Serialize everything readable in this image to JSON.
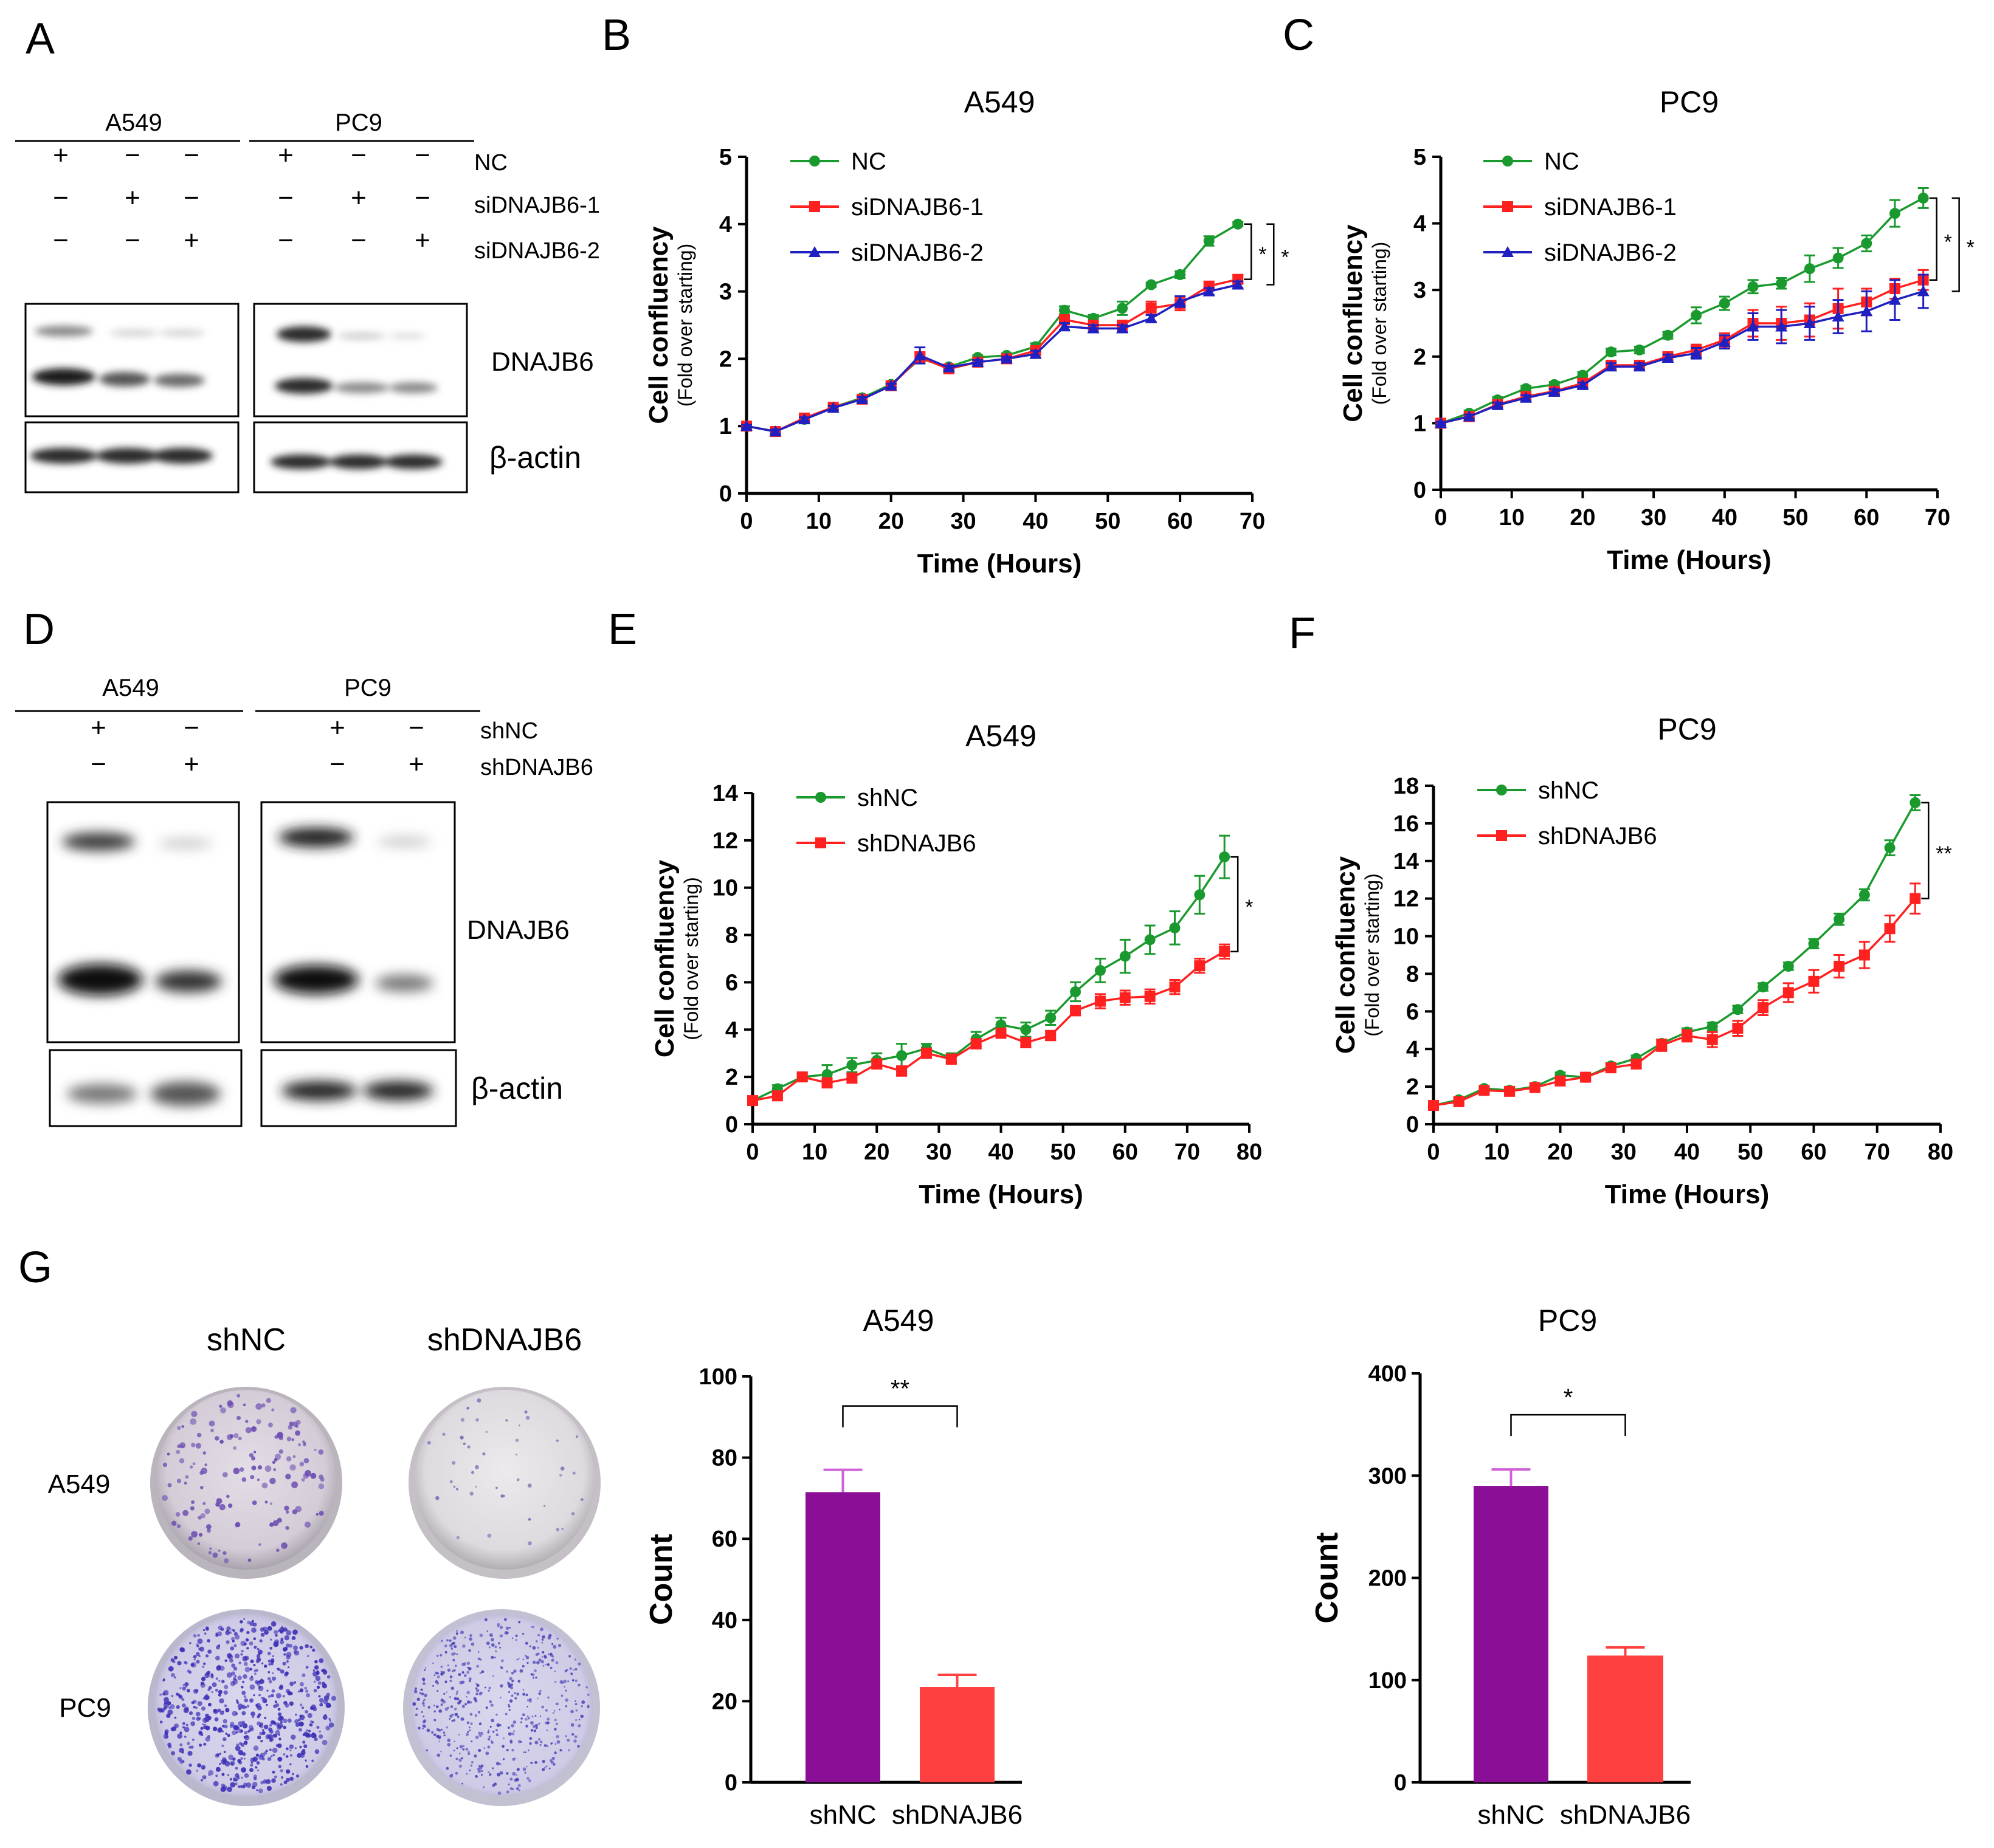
{
  "panel_letters": [
    "A",
    "B",
    "C",
    "D",
    "E",
    "F",
    "G"
  ],
  "colors": {
    "nc": "#1a9a2e",
    "si1": "#ff2020",
    "si2": "#2020c0",
    "bar_nc": "#8b0f96",
    "bar_sh": "#ff4040",
    "bar_err": "#d060d8"
  },
  "blot_A": {
    "cells": [
      "A549",
      "PC9"
    ],
    "rows": [
      {
        "label": "NC",
        "signs": [
          "+",
          "−",
          "−",
          "+",
          "−",
          "−"
        ]
      },
      {
        "label": "siDNAJB6-1",
        "signs": [
          "−",
          "+",
          "−",
          "−",
          "+",
          "−"
        ]
      },
      {
        "label": "siDNAJB6-2",
        "signs": [
          "−",
          "−",
          "+",
          "−",
          "−",
          "+"
        ]
      }
    ],
    "proteins": [
      "DNAJB6",
      "β-actin"
    ]
  },
  "blot_D": {
    "cells": [
      "A549",
      "PC9"
    ],
    "rows": [
      {
        "label": "shNC",
        "signs": [
          "+",
          "−",
          "+",
          "−"
        ]
      },
      {
        "label": "shDNAJB6",
        "signs": [
          "−",
          "+",
          "−",
          "+"
        ]
      }
    ],
    "proteins": [
      "DNAJB6",
      "β-actin"
    ]
  },
  "colony": {
    "cols": [
      "shNC",
      "shDNAJB6"
    ],
    "rows": [
      "A549",
      "PC9"
    ]
  },
  "chart_data": [
    {
      "id": "B",
      "type": "line",
      "title": "A549",
      "xlabel": "Time (Hours)",
      "ylabel": "Cell confluency",
      "ylabel2": "(Fold over starting)",
      "xlim": [
        0,
        70
      ],
      "ylim": [
        0,
        5
      ],
      "xticks": [
        0,
        10,
        20,
        30,
        40,
        50,
        60,
        70
      ],
      "yticks": [
        0,
        1,
        2,
        3,
        4,
        5
      ],
      "x": [
        0,
        4,
        8,
        12,
        16,
        20,
        24,
        28,
        32,
        36,
        40,
        44,
        48,
        52,
        56,
        60,
        64,
        68
      ],
      "series": [
        {
          "name": "NC",
          "marker": "circle",
          "values": [
            1,
            0.92,
            1.1,
            1.28,
            1.42,
            1.62,
            2.0,
            1.88,
            2.02,
            2.05,
            2.18,
            2.72,
            2.6,
            2.75,
            3.1,
            3.25,
            3.75,
            4.0
          ],
          "err": [
            0.02,
            0.03,
            0.03,
            0.03,
            0.03,
            0.03,
            0.05,
            0.03,
            0.03,
            0.03,
            0.05,
            0.06,
            0.05,
            0.1,
            0.03,
            0.05,
            0.07,
            0.03
          ]
        },
        {
          "name": "siDNAJB6-1",
          "marker": "square",
          "values": [
            1,
            0.92,
            1.12,
            1.28,
            1.4,
            1.6,
            2.02,
            1.85,
            1.95,
            2.0,
            2.12,
            2.58,
            2.5,
            2.5,
            2.75,
            2.82,
            3.08,
            3.18
          ],
          "err": [
            0.02,
            0.03,
            0.03,
            0.03,
            0.03,
            0.03,
            0.08,
            0.03,
            0.03,
            0.03,
            0.05,
            0.05,
            0.05,
            0.05,
            0.1,
            0.1,
            0.06,
            0.06
          ]
        },
        {
          "name": "siDNAJB6-2",
          "marker": "triangle",
          "values": [
            1,
            0.92,
            1.1,
            1.27,
            1.4,
            1.6,
            2.05,
            1.87,
            1.95,
            2.0,
            2.07,
            2.48,
            2.45,
            2.45,
            2.6,
            2.85,
            3.0,
            3.1
          ],
          "err": [
            0.02,
            0.03,
            0.03,
            0.03,
            0.03,
            0.03,
            0.12,
            0.03,
            0.03,
            0.03,
            0.05,
            0.05,
            0.05,
            0.05,
            0.05,
            0.08,
            0.05,
            0.05
          ]
        }
      ],
      "significance": [
        "*",
        "*"
      ]
    },
    {
      "id": "C",
      "type": "line",
      "title": "PC9",
      "xlabel": "Time (Hours)",
      "ylabel": "Cell confluency",
      "ylabel2": "(Fold over starting)",
      "xlim": [
        0,
        70
      ],
      "ylim": [
        0,
        5
      ],
      "xticks": [
        0,
        10,
        20,
        30,
        40,
        50,
        60,
        70
      ],
      "yticks": [
        0,
        1,
        2,
        3,
        4,
        5
      ],
      "x": [
        0,
        4,
        8,
        12,
        16,
        20,
        24,
        28,
        32,
        36,
        40,
        44,
        48,
        52,
        56,
        60,
        64,
        68
      ],
      "series": [
        {
          "name": "NC",
          "marker": "circle",
          "values": [
            1,
            1.15,
            1.35,
            1.52,
            1.58,
            1.72,
            2.07,
            2.1,
            2.32,
            2.62,
            2.8,
            3.05,
            3.1,
            3.32,
            3.48,
            3.7,
            4.15,
            4.38
          ],
          "err": [
            0.02,
            0.04,
            0.04,
            0.04,
            0.04,
            0.05,
            0.05,
            0.05,
            0.05,
            0.12,
            0.1,
            0.1,
            0.08,
            0.2,
            0.15,
            0.12,
            0.2,
            0.15
          ]
        },
        {
          "name": "siDNAJB6-1",
          "marker": "square",
          "values": [
            1,
            1.1,
            1.28,
            1.4,
            1.48,
            1.6,
            1.87,
            1.87,
            2.0,
            2.1,
            2.25,
            2.5,
            2.5,
            2.55,
            2.72,
            2.82,
            3.02,
            3.15
          ],
          "err": [
            0.02,
            0.03,
            0.04,
            0.04,
            0.04,
            0.04,
            0.05,
            0.05,
            0.05,
            0.08,
            0.1,
            0.2,
            0.25,
            0.25,
            0.3,
            0.2,
            0.15,
            0.15
          ]
        },
        {
          "name": "siDNAJB6-2",
          "marker": "triangle",
          "values": [
            1,
            1.1,
            1.27,
            1.38,
            1.47,
            1.57,
            1.85,
            1.85,
            1.98,
            2.05,
            2.22,
            2.45,
            2.45,
            2.5,
            2.6,
            2.68,
            2.85,
            2.98
          ],
          "err": [
            0.02,
            0.03,
            0.04,
            0.04,
            0.04,
            0.04,
            0.05,
            0.05,
            0.05,
            0.08,
            0.1,
            0.2,
            0.25,
            0.25,
            0.25,
            0.3,
            0.3,
            0.25
          ]
        }
      ],
      "significance": [
        "*",
        "*"
      ]
    },
    {
      "id": "E",
      "type": "line",
      "title": "A549",
      "xlabel": "Time (Hours)",
      "ylabel": "Cell confluency",
      "ylabel2": "(Fold over starting)",
      "xlim": [
        0,
        80
      ],
      "ylim": [
        0,
        14
      ],
      "xticks": [
        0,
        10,
        20,
        30,
        40,
        50,
        60,
        70,
        80
      ],
      "yticks": [
        0,
        2,
        4,
        6,
        8,
        10,
        12,
        14
      ],
      "x": [
        0,
        4,
        8,
        12,
        16,
        20,
        24,
        28,
        32,
        36,
        40,
        44,
        48,
        52,
        56,
        60,
        64,
        68,
        72,
        76
      ],
      "series": [
        {
          "name": "shNC",
          "marker": "circle",
          "values": [
            1,
            1.5,
            2.0,
            2.1,
            2.5,
            2.7,
            2.9,
            3.2,
            2.8,
            3.6,
            4.2,
            4.0,
            4.5,
            5.6,
            6.5,
            7.1,
            7.8,
            8.3,
            9.7,
            11.3
          ],
          "err": [
            0.1,
            0.15,
            0.15,
            0.4,
            0.3,
            0.3,
            0.5,
            0.2,
            0.2,
            0.3,
            0.3,
            0.3,
            0.3,
            0.4,
            0.5,
            0.7,
            0.6,
            0.7,
            0.8,
            0.9
          ]
        },
        {
          "name": "shDNAJB6",
          "marker": "square",
          "values": [
            1,
            1.2,
            2.0,
            1.75,
            1.95,
            2.55,
            2.25,
            3.0,
            2.75,
            3.4,
            3.85,
            3.45,
            3.75,
            4.8,
            5.2,
            5.35,
            5.4,
            5.8,
            6.7,
            7.3
          ],
          "err": [
            0.1,
            0.1,
            0.15,
            0.2,
            0.2,
            0.2,
            0.2,
            0.2,
            0.2,
            0.2,
            0.2,
            0.2,
            0.2,
            0.2,
            0.3,
            0.3,
            0.3,
            0.3,
            0.3,
            0.3
          ]
        }
      ],
      "significance": [
        "*"
      ]
    },
    {
      "id": "F",
      "type": "line",
      "title": "PC9",
      "xlabel": "Time (Hours)",
      "ylabel": "Cell confluency",
      "ylabel2": "(Fold over starting)",
      "xlim": [
        0,
        80
      ],
      "ylim": [
        0,
        18
      ],
      "xticks": [
        0,
        10,
        20,
        30,
        40,
        50,
        60,
        70,
        80
      ],
      "yticks": [
        0,
        2,
        4,
        6,
        8,
        10,
        12,
        14,
        16,
        18
      ],
      "x": [
        0,
        4,
        8,
        12,
        16,
        20,
        24,
        28,
        32,
        36,
        40,
        44,
        48,
        52,
        56,
        60,
        64,
        68,
        72,
        76
      ],
      "series": [
        {
          "name": "shNC",
          "marker": "circle",
          "values": [
            1,
            1.3,
            1.9,
            1.8,
            2.0,
            2.6,
            2.5,
            3.1,
            3.5,
            4.3,
            4.9,
            5.2,
            6.1,
            7.3,
            8.4,
            9.6,
            10.9,
            12.2,
            14.7,
            17.1
          ],
          "err": [
            0.1,
            0.1,
            0.1,
            0.1,
            0.1,
            0.15,
            0.15,
            0.15,
            0.15,
            0.2,
            0.2,
            0.2,
            0.2,
            0.2,
            0.2,
            0.25,
            0.3,
            0.3,
            0.4,
            0.4
          ]
        },
        {
          "name": "shDNAJB6",
          "marker": "square",
          "values": [
            1,
            1.2,
            1.8,
            1.75,
            1.95,
            2.3,
            2.5,
            3.0,
            3.2,
            4.2,
            4.7,
            4.5,
            5.1,
            6.2,
            7.0,
            7.6,
            8.4,
            9.0,
            10.4,
            12.0
          ],
          "err": [
            0.1,
            0.1,
            0.1,
            0.1,
            0.1,
            0.15,
            0.15,
            0.15,
            0.2,
            0.3,
            0.3,
            0.4,
            0.4,
            0.4,
            0.5,
            0.6,
            0.6,
            0.7,
            0.7,
            0.8
          ]
        }
      ],
      "significance": [
        "**"
      ]
    },
    {
      "id": "G1",
      "type": "bar",
      "title": "A549",
      "ylabel": "Count",
      "categories": [
        "shNC",
        "shDNAJB6"
      ],
      "values": [
        71.5,
        23.5
      ],
      "err": [
        5.5,
        3.0
      ],
      "ylim": [
        0,
        100
      ],
      "yticks": [
        0,
        20,
        40,
        60,
        80,
        100
      ],
      "significance": "**"
    },
    {
      "id": "G2",
      "type": "bar",
      "title": "PC9",
      "ylabel": "Count",
      "categories": [
        "shNC",
        "shDNAJB6"
      ],
      "values": [
        290,
        124
      ],
      "err": [
        16,
        8
      ],
      "ylim": [
        0,
        400
      ],
      "yticks": [
        0,
        100,
        200,
        300,
        400
      ],
      "significance": "*"
    }
  ]
}
